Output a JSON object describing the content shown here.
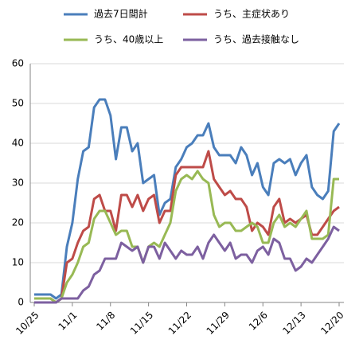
{
  "chart_data": {
    "type": "line",
    "categories": [
      "10/25",
      null,
      null,
      null,
      null,
      null,
      null,
      "11/1",
      null,
      null,
      null,
      null,
      null,
      null,
      "11/8",
      null,
      null,
      null,
      null,
      null,
      null,
      "11/15",
      null,
      null,
      null,
      null,
      null,
      null,
      "11/22",
      null,
      null,
      null,
      null,
      null,
      null,
      "11/29",
      null,
      null,
      null,
      null,
      null,
      null,
      "12/6",
      null,
      null,
      null,
      null,
      null,
      null,
      "12/13",
      null,
      null,
      null,
      null,
      null,
      null,
      "12/20"
    ],
    "series": [
      {
        "name": "過去7日間計",
        "color": "#4a7ebb",
        "values": [
          2,
          2,
          2,
          2,
          1,
          2,
          14,
          20,
          31,
          38,
          39,
          49,
          51,
          51,
          47,
          36,
          44,
          44,
          38,
          40,
          30,
          31,
          32,
          22,
          25,
          26,
          34,
          36,
          39,
          40,
          42,
          42,
          45,
          39,
          37,
          37,
          37,
          35,
          39,
          37,
          32,
          35,
          29,
          27,
          35,
          36,
          35,
          36,
          32,
          35,
          37,
          29,
          27,
          26,
          28,
          43,
          45
        ]
      },
      {
        "name": "うち、主症状あり",
        "color": "#be4b48",
        "values": [
          1,
          1,
          1,
          1,
          0,
          1,
          10,
          11,
          15,
          18,
          19,
          26,
          27,
          23,
          23,
          18,
          27,
          27,
          24,
          27,
          23,
          26,
          27,
          20,
          23,
          23,
          32,
          34,
          34,
          34,
          34,
          34,
          38,
          31,
          29,
          27,
          28,
          26,
          26,
          24,
          18,
          20,
          19,
          17,
          24,
          26,
          20,
          21,
          20,
          21,
          22,
          17,
          17,
          19,
          21,
          23,
          24
        ]
      },
      {
        "name": "うち、40歳以上",
        "color": "#98b954",
        "values": [
          1,
          1,
          1,
          1,
          0,
          1,
          5,
          7,
          10,
          14,
          15,
          21,
          23,
          23,
          20,
          17,
          18,
          18,
          14,
          14,
          10,
          14,
          15,
          14,
          17,
          20,
          28,
          31,
          32,
          31,
          33,
          31,
          30,
          22,
          19,
          20,
          20,
          18,
          18,
          19,
          20,
          19,
          15,
          15,
          20,
          22,
          19,
          20,
          19,
          21,
          23,
          16,
          16,
          16,
          17,
          31,
          31
        ]
      },
      {
        "name": "うち、過去接触なし",
        "color": "#7d60a0",
        "values": [
          0,
          0,
          0,
          0,
          0,
          1,
          1,
          1,
          1,
          3,
          4,
          7,
          8,
          11,
          11,
          11,
          15,
          14,
          13,
          14,
          10,
          14,
          14,
          11,
          15,
          13,
          11,
          13,
          12,
          12,
          14,
          11,
          15,
          17,
          15,
          13,
          15,
          11,
          12,
          12,
          10,
          13,
          14,
          12,
          16,
          15,
          11,
          11,
          8,
          9,
          11,
          10,
          12,
          14,
          16,
          19,
          18
        ]
      }
    ],
    "ylim": [
      0,
      60
    ],
    "yticks": [
      0,
      10,
      20,
      30,
      40,
      50,
      60
    ],
    "grid": true,
    "legend": "top"
  }
}
